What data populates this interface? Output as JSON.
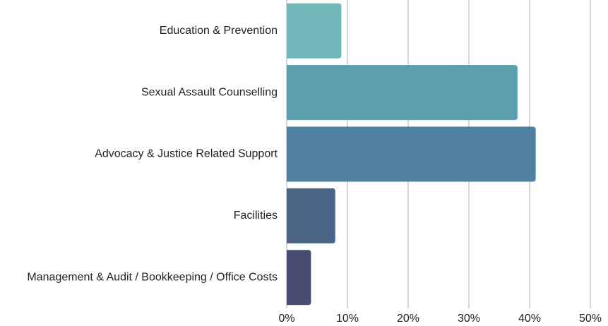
{
  "chart_data": {
    "type": "barh",
    "categories": [
      "Education & Prevention",
      "Sexual Assault Counselling",
      "Advocacy & Justice Related Support",
      "Facilities",
      "Management & Audit / Bookkeeping / Office Costs"
    ],
    "values": [
      9,
      38,
      41,
      8,
      4
    ],
    "colors": [
      "#72b8bb",
      "#5b9fad",
      "#4f80a0",
      "#4a6488",
      "#484c70"
    ],
    "xlim": [
      0,
      50
    ],
    "xticks": [
      {
        "value": 0,
        "label": "0%"
      },
      {
        "value": 10,
        "label": "10%"
      },
      {
        "value": 20,
        "label": "20%"
      },
      {
        "value": 30,
        "label": "30%"
      },
      {
        "value": 40,
        "label": "40%"
      },
      {
        "value": 50,
        "label": "50%"
      }
    ],
    "grid": true
  }
}
